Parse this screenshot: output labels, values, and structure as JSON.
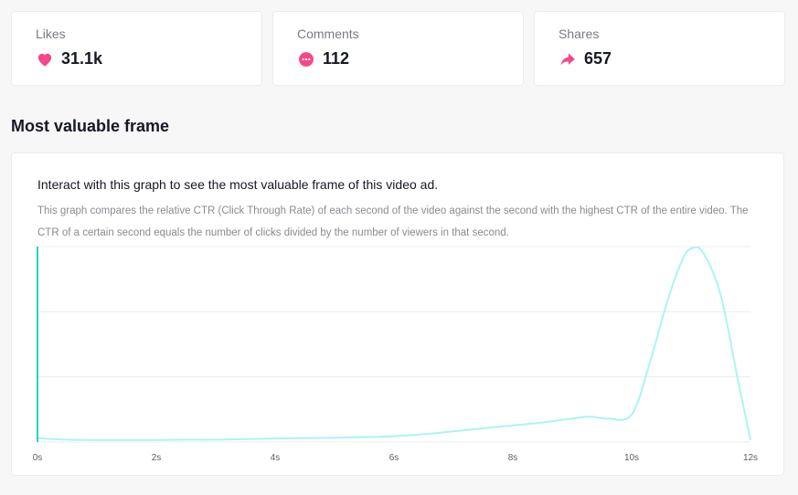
{
  "stats": [
    {
      "label": "Likes",
      "value": "31.1k",
      "icon": "heart-icon"
    },
    {
      "label": "Comments",
      "value": "112",
      "icon": "comment-icon"
    },
    {
      "label": "Shares",
      "value": "657",
      "icon": "share-icon"
    }
  ],
  "colors": {
    "accent": "#fe2c55",
    "icon_pink": "#f5478b",
    "line": "#aaf5f2",
    "cursor": "#20d5c4",
    "grid": "#ececee"
  },
  "section": {
    "title": "Most valuable frame"
  },
  "graph": {
    "heading": "Interact with this graph to see the most valuable frame of this video ad.",
    "description": "This graph compares the relative CTR (Click Through Rate) of each second of the video against the second with the highest CTR of the entire video. The CTR of a certain second equals the number of clicks divided by the number of viewers in that second."
  },
  "chart_data": {
    "type": "line",
    "title": "",
    "xlabel": "",
    "ylabel": "",
    "xlim": [
      0,
      12
    ],
    "ylim": [
      0,
      1
    ],
    "x_ticks": [
      "0s",
      "2s",
      "4s",
      "6s",
      "8s",
      "10s",
      "12s"
    ],
    "grid": "horizontal",
    "cursor_x": 0,
    "series": [
      {
        "x": [
          0,
          0.5,
          1,
          1.5,
          2,
          2.5,
          3,
          3.5,
          4,
          4.5,
          5,
          5.5,
          6,
          6.5,
          7,
          7.5,
          8,
          8.5,
          9,
          9.3,
          9.6,
          10,
          10.3,
          10.6,
          10.85,
          11,
          11.2,
          11.5,
          11.8,
          12
        ],
        "y": [
          0.02,
          0.012,
          0.01,
          0.01,
          0.01,
          0.012,
          0.012,
          0.015,
          0.018,
          0.02,
          0.022,
          0.025,
          0.03,
          0.04,
          0.055,
          0.07,
          0.085,
          0.1,
          0.12,
          0.13,
          0.12,
          0.14,
          0.4,
          0.72,
          0.93,
          0.99,
          0.97,
          0.75,
          0.3,
          0.01
        ]
      }
    ]
  }
}
